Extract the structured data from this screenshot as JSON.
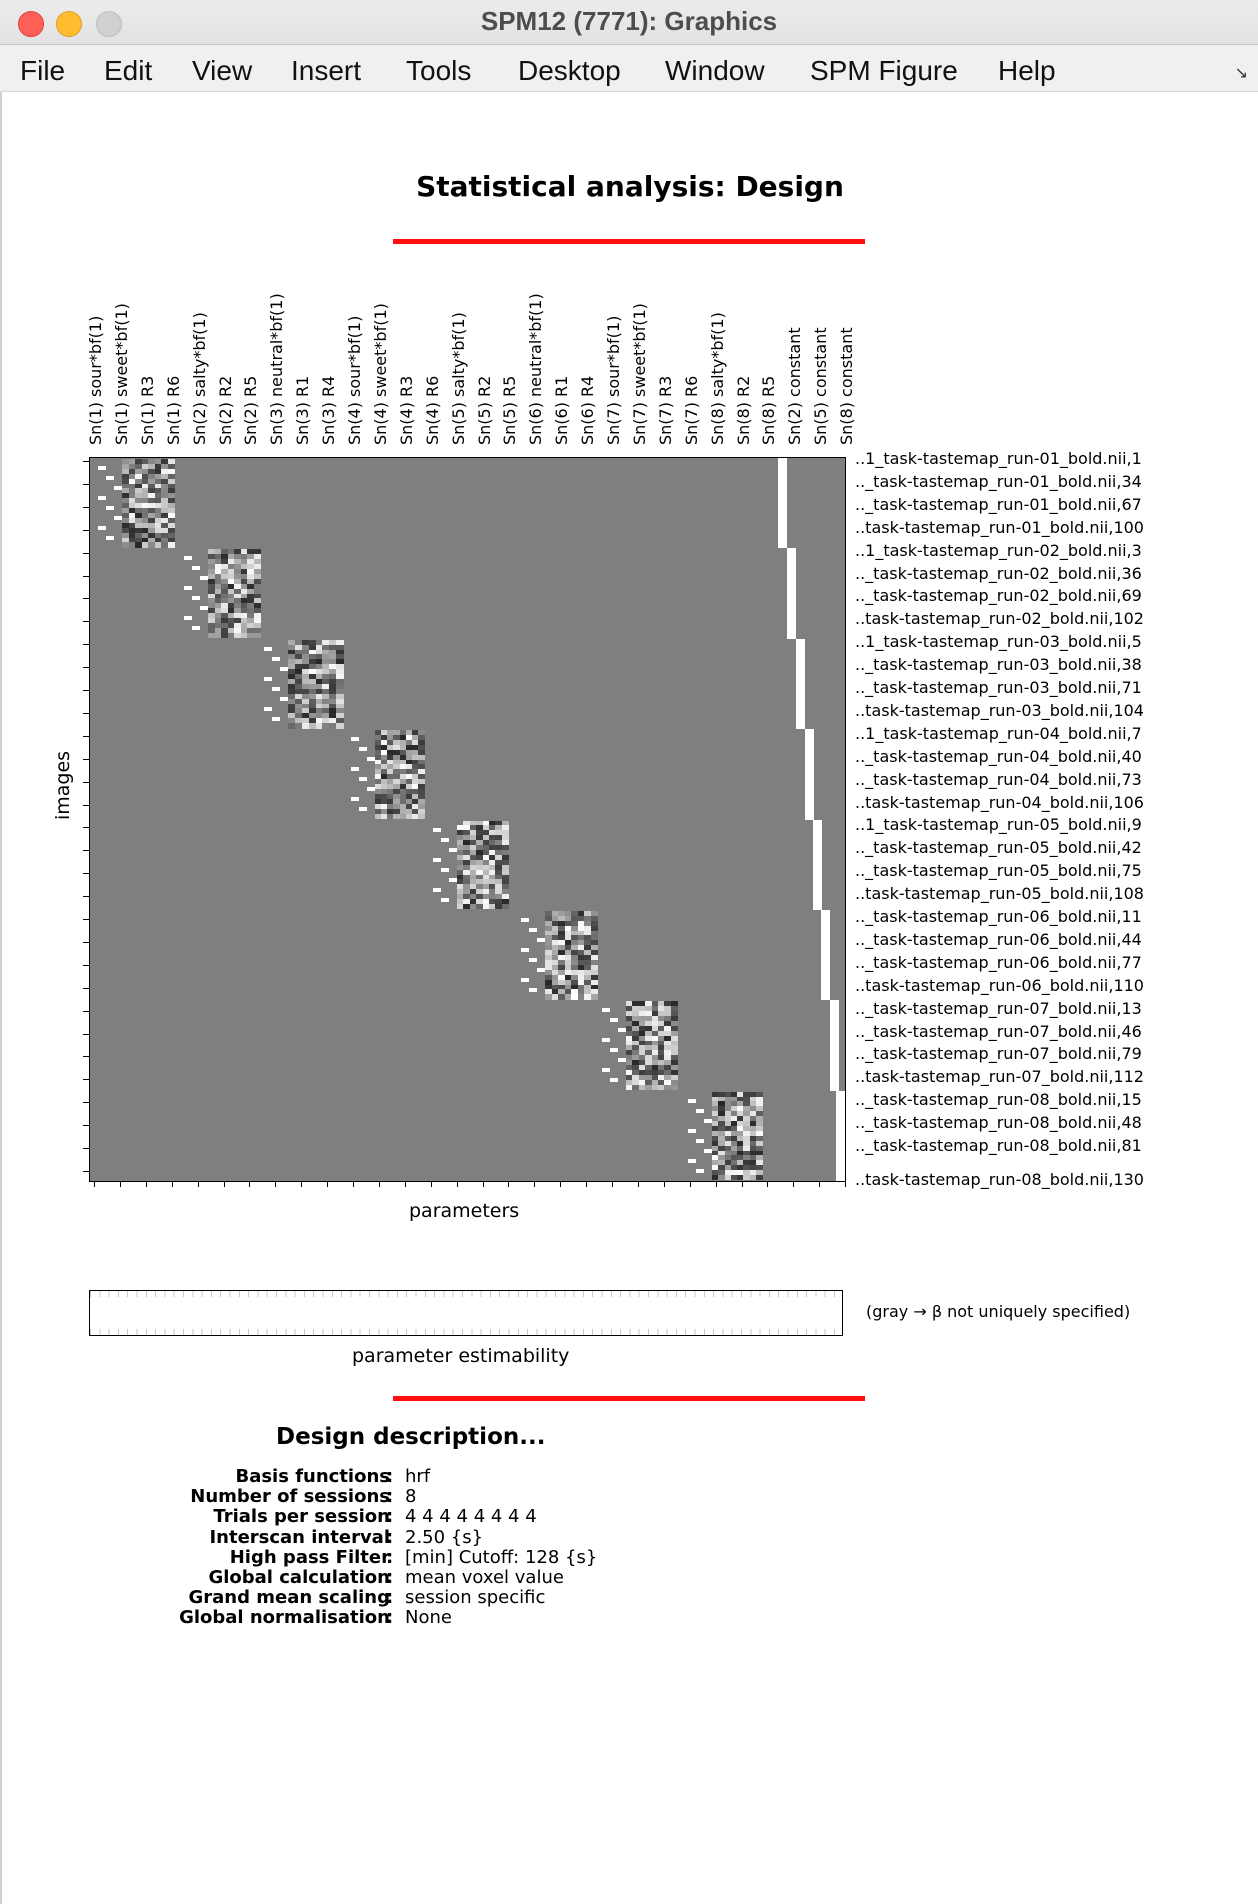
{
  "window": {
    "title": "SPM12 (7771): Graphics",
    "menu": [
      "File",
      "Edit",
      "View",
      "Insert",
      "Tools",
      "Desktop",
      "Window",
      "SPM Figure",
      "Help"
    ]
  },
  "figure": {
    "title": "Statistical analysis: Design",
    "y_axis_label": "images",
    "x_axis_label": "parameters",
    "estimability_label": "parameter estimability",
    "estimability_note": "(gray → β not uniquely specified)",
    "accent_color": "#ff1010",
    "matrix_background": "#7f7f7f"
  },
  "design_matrix": {
    "column_labels": [
      "Sn(1) sour*bf(1)",
      "Sn(1) sweet*bf(1)",
      "Sn(1) R3",
      "Sn(1) R6",
      "Sn(2) salty*bf(1)",
      "Sn(2) R2",
      "Sn(2) R5",
      "Sn(3) neutral*bf(1)",
      "Sn(3) R1",
      "Sn(3) R4",
      "Sn(4) sour*bf(1)",
      "Sn(4) sweet*bf(1)",
      "Sn(4) R3",
      "Sn(4) R6",
      "Sn(5) salty*bf(1)",
      "Sn(5) R2",
      "Sn(5) R5",
      "Sn(6) neutral*bf(1)",
      "Sn(6) R1",
      "Sn(6) R4",
      "Sn(7) sour*bf(1)",
      "Sn(7) sweet*bf(1)",
      "Sn(7) R3",
      "Sn(7) R6",
      "Sn(8) salty*bf(1)",
      "Sn(8) R2",
      "Sn(8) R5",
      "Sn(2) constant",
      "Sn(5) constant",
      "Sn(8) constant"
    ],
    "row_labels": [
      "..1_task-tastemap_run-01_bold.nii,1",
      ".._task-tastemap_run-01_bold.nii,34",
      ".._task-tastemap_run-01_bold.nii,67",
      "..task-tastemap_run-01_bold.nii,100",
      "..1_task-tastemap_run-02_bold.nii,3",
      ".._task-tastemap_run-02_bold.nii,36",
      ".._task-tastemap_run-02_bold.nii,69",
      "..task-tastemap_run-02_bold.nii,102",
      "..1_task-tastemap_run-03_bold.nii,5",
      ".._task-tastemap_run-03_bold.nii,38",
      ".._task-tastemap_run-03_bold.nii,71",
      "..task-tastemap_run-03_bold.nii,104",
      "..1_task-tastemap_run-04_bold.nii,7",
      ".._task-tastemap_run-04_bold.nii,40",
      ".._task-tastemap_run-04_bold.nii,73",
      "..task-tastemap_run-04_bold.nii,106",
      "..1_task-tastemap_run-05_bold.nii,9",
      ".._task-tastemap_run-05_bold.nii,42",
      ".._task-tastemap_run-05_bold.nii,75",
      "..task-tastemap_run-05_bold.nii,108",
      ".._task-tastemap_run-06_bold.nii,11",
      ".._task-tastemap_run-06_bold.nii,44",
      ".._task-tastemap_run-06_bold.nii,77",
      "..task-tastemap_run-06_bold.nii,110",
      ".._task-tastemap_run-07_bold.nii,13",
      ".._task-tastemap_run-07_bold.nii,46",
      ".._task-tastemap_run-07_bold.nii,79",
      "..task-tastemap_run-07_bold.nii,112",
      ".._task-tastemap_run-08_bold.nii,15",
      ".._task-tastemap_run-08_bold.nii,48",
      ".._task-tastemap_run-08_bold.nii,81",
      "..task-tastemap_run-08_bold.nii,130"
    ]
  },
  "description": {
    "title": "Design description...",
    "rows": [
      {
        "key": "Basis functions",
        "value": "hrf"
      },
      {
        "key": "Number of sessions",
        "value": "8"
      },
      {
        "key": "Trials per session",
        "value": "4  4  4  4  4  4  4  4"
      },
      {
        "key": "Interscan interval",
        "value": "2.50 {s}"
      },
      {
        "key": "High pass Filter",
        "value": "[min] Cutoff: 128 {s}"
      },
      {
        "key": "Global calculation",
        "value": "mean voxel value"
      },
      {
        "key": "Grand mean scaling",
        "value": "session specific"
      },
      {
        "key": "Global normalisation",
        "value": "None"
      }
    ]
  }
}
